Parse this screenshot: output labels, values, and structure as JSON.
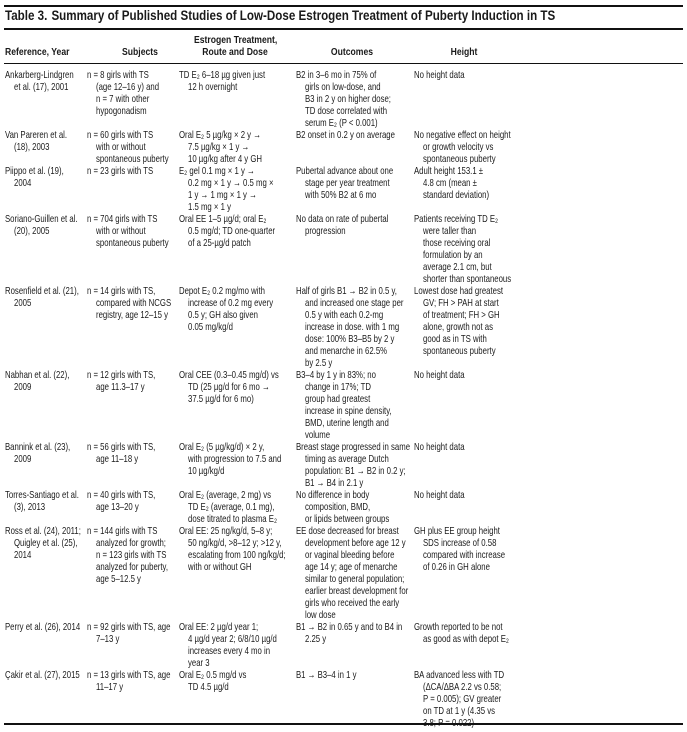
{
  "table": {
    "label": "Table 3.",
    "title": "Summary of Published Studies of Low-Dose Estrogen Treatment of Puberty Induction in TS",
    "headers": {
      "reference": "Reference, Year",
      "subjects": "Subjects",
      "treatment_1": "Estrogen Treatment,",
      "treatment_2": "Route and Dose",
      "outcomes": "Outcomes",
      "height": "Height"
    },
    "rows": [
      {
        "reference": [
          "Ankarberg-Lindgren",
          "et al. (17), 2001"
        ],
        "subjects": [
          "n = 8 girls with TS",
          "(age 12–16 y) and",
          "n = 7 with other",
          "hypogonadism"
        ],
        "treatment": [
          "TD E₂ 6–18 µg given just",
          "12 h overnight"
        ],
        "outcomes": [
          "B2 in 3–6 mo in 75% of",
          "girls on low-dose, and",
          "B3 in 2 y on higher dose;",
          "TD dose correlated with",
          "serum E₂ (P < 0.001)"
        ],
        "height": [
          "No height data"
        ]
      },
      {
        "reference": [
          "Van Pareren et al.",
          "(18), 2003"
        ],
        "subjects": [
          "n = 60 girls with TS",
          "with or without",
          "spontaneous puberty"
        ],
        "treatment": [
          "Oral E₂ 5 µg/kg × 2 y →",
          "7.5 µg/kg × 1 y →",
          "10 µg/kg after 4 y GH"
        ],
        "outcomes": [
          "B2 onset in 0.2 y on average"
        ],
        "height": [
          "No negative effect on height",
          "or growth velocity vs",
          "spontaneous puberty"
        ]
      },
      {
        "reference": [
          "Piippo et al. (19),",
          "2004"
        ],
        "subjects": [
          "n = 23 girls with TS"
        ],
        "treatment": [
          "E₂ gel 0.1 mg × 1 y →",
          "0.2 mg × 1 y → 0.5 mg ×",
          "1 y → 1 mg × 1 y →",
          "1.5 mg × 1 y"
        ],
        "outcomes": [
          "Pubertal advance about one",
          "stage per year treatment",
          "with 50% B2 at 6 mo"
        ],
        "height": [
          "Adult height 153.1 ±",
          "4.8 cm (mean ±",
          "standard deviation)"
        ]
      },
      {
        "reference": [
          "Soriano-Guillen et al.",
          "(20), 2005"
        ],
        "subjects": [
          "n = 704 girls with TS",
          "with or without",
          "spontaneous puberty"
        ],
        "treatment": [
          "Oral EE 1–5 µg/d; oral E₂",
          "0.5 mg/d; TD one-quarter",
          "of a 25-µg/d patch"
        ],
        "outcomes": [
          "No data on rate of pubertal",
          "progression"
        ],
        "height": [
          "Patients receiving TD E₂",
          "were taller than",
          "those receiving oral",
          "formulation by an",
          "average 2.1 cm, but",
          "shorter than spontaneous"
        ]
      },
      {
        "reference": [
          "Rosenfield et al. (21),",
          "2005"
        ],
        "subjects": [
          "n = 14 girls with TS,",
          "compared with NCGS",
          "registry, age 12–15 y"
        ],
        "treatment": [
          "Depot E₂ 0.2 mg/mo with",
          "increase of 0.2 mg every",
          "0.5 y; GH also given",
          "0.05 mg/kg/d"
        ],
        "outcomes": [
          "Half of girls B1 → B2 in 0.5 y,",
          "and increased one stage per",
          "0.5 y with each 0.2-mg",
          "increase in dose. with 1 mg",
          "dose: 100% B3–B5 by 2 y",
          "and menarche in 62.5%",
          "by 2.5 y"
        ],
        "height": [
          "Lowest dose had greatest",
          "GV; FH > PAH at start",
          "of treatment; FH > GH",
          "alone, growth not as",
          "good as in TS with",
          "spontaneous puberty"
        ]
      },
      {
        "reference": [
          "Nabhan et al. (22),",
          "2009"
        ],
        "subjects": [
          "n = 12 girls with TS,",
          "age 11.3–17 y"
        ],
        "treatment": [
          "Oral CEE (0.3–0.45 mg/d) vs",
          "TD (25 µg/d for 6 mo →",
          "37.5 µg/d for 6 mo)"
        ],
        "outcomes": [
          "B3–4 by 1 y in 83%; no",
          "change in 17%; TD",
          "group had greatest",
          "increase in spine density,",
          "BMD, uterine length and",
          "volume"
        ],
        "height": [
          "No height data"
        ]
      },
      {
        "reference": [
          "Bannink et al. (23),",
          "2009"
        ],
        "subjects": [
          "n = 56 girls with TS,",
          "age 11–18 y"
        ],
        "treatment": [
          "Oral E₂ (5 µg/kg/d) × 2 y,",
          "with progression to 7.5 and",
          "10 µg/kg/d"
        ],
        "outcomes": [
          "Breast stage progressed in same",
          "timing as average Dutch",
          "population: B1 → B2 in 0.2 y;",
          "B1 → B4 in 2.1 y"
        ],
        "height": [
          "No height data"
        ]
      },
      {
        "reference": [
          "Torres-Santiago et al.",
          "(3), 2013"
        ],
        "subjects": [
          "n = 40 girls with TS,",
          "age 13–20 y"
        ],
        "treatment": [
          "Oral E₂ (average, 2 mg) vs",
          "TD E₂ (average, 0.1 mg),",
          "dose titrated to plasma E₂"
        ],
        "outcomes": [
          "No difference in body",
          "composition, BMD,",
          "or lipids between groups"
        ],
        "height": [
          "No height data"
        ]
      },
      {
        "reference": [
          "Ross et al. (24), 2011;",
          "Quigley et al. (25),",
          "2014"
        ],
        "subjects": [
          "n = 144 girls with TS",
          "analyzed for growth;",
          "n = 123 girls with TS",
          "analyzed for puberty,",
          "age 5–12.5 y"
        ],
        "treatment": [
          "Oral EE: 25 ng/kg/d, 5–8 y;",
          "50 ng/kg/d, >8–12 y; >12 y,",
          "escalating from 100 ng/kg/d;",
          "with or without GH"
        ],
        "outcomes": [
          "EE dose decreased for breast",
          "development before age 12 y",
          "or vaginal bleeding before",
          "age 14 y; age of menarche",
          "similar to general population;",
          "earlier breast development for",
          "girls who received the early",
          "low dose"
        ],
        "height": [
          "GH plus EE group height",
          "SDS increase of 0.58",
          "compared with increase",
          "of 0.26 in GH alone"
        ]
      },
      {
        "reference": [
          "Perry et al. (26), 2014"
        ],
        "subjects": [
          "n = 92 girls with TS, age",
          "7–13 y"
        ],
        "treatment": [
          "Oral EE: 2 µg/d year 1;",
          "4 µg/d year 2; 6/8/10 µg/d",
          "increases every 4 mo in",
          "year 3"
        ],
        "outcomes": [
          "B1 → B2 in 0.65 y and to B4 in",
          "2.25 y"
        ],
        "height": [
          "Growth reported to be not",
          "as good as with depot E₂"
        ]
      },
      {
        "reference": [
          "Çakir et al. (27), 2015"
        ],
        "subjects": [
          "n = 13 girls with TS, age",
          "11–17 y"
        ],
        "treatment": [
          "Oral E₂ 0.5 mg/d vs",
          "TD 4.5 µg/d"
        ],
        "outcomes": [
          "B1 → B3–4 in 1 y"
        ],
        "height": [
          "BA advanced less with TD",
          "(ΔCA/ΔBA 2.2 vs 0.58;",
          "P = 0.005); GV greater",
          "on TD at 1 y (4.35 vs",
          "3.8; P = 0.022)"
        ]
      }
    ]
  }
}
